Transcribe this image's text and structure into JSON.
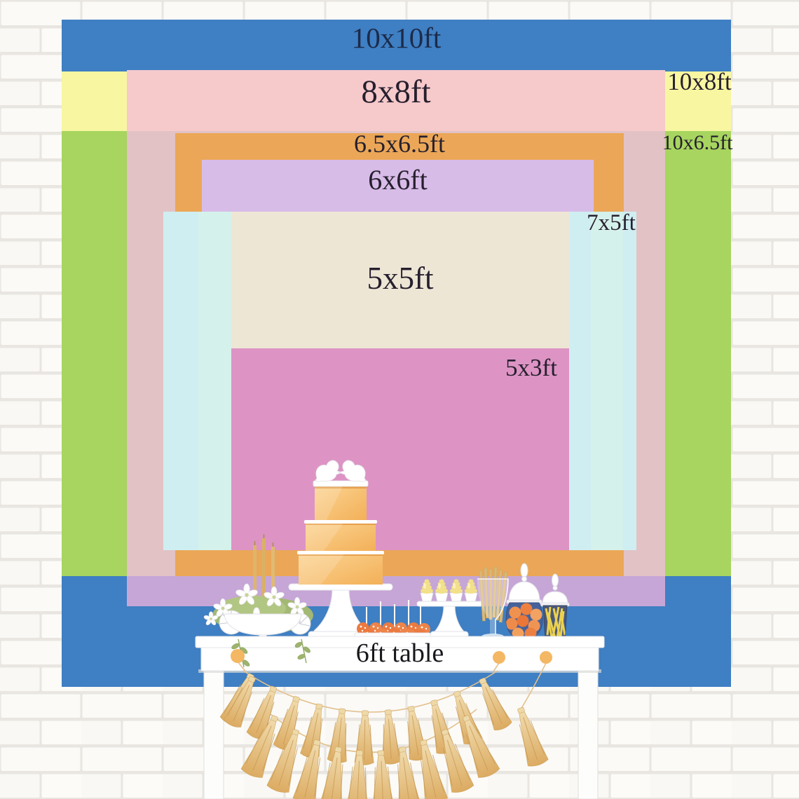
{
  "backdrops": [
    {
      "id": "10x10",
      "label": "10x10ft",
      "color": "#3f7fc3"
    },
    {
      "id": "10x8",
      "label": "10x8ft",
      "color": "#f8f6a1"
    },
    {
      "id": "10x6.5",
      "label": "10x6.5ft",
      "color": "#a7d55f"
    },
    {
      "id": "8x8",
      "label": "8x8ft",
      "color": "#f6c9cb"
    },
    {
      "id": "6.5x6.5",
      "label": "6.5x6.5ft",
      "color": "#eba757"
    },
    {
      "id": "6x6",
      "label": "6x6ft",
      "color": "#d8bce8"
    },
    {
      "id": "7x5",
      "label": "7x5ft",
      "color": "#cfeef2"
    },
    {
      "id": "5x5",
      "label": "5x5ft",
      "color": "#ede6d5"
    },
    {
      "id": "5x3",
      "label": "5x3ft",
      "color": "#dd94c4"
    }
  ],
  "overlay_colors": {
    "pink_over_yellow": "#f6c9cb",
    "pink_over_green": "#e2c2c4",
    "pink_over_blue": "#c6a6d6"
  },
  "table": {
    "label": "6ft table"
  },
  "scene": {
    "wall": "white-brick-wall",
    "decor_items": [
      "love-birds-cake-topper",
      "three-tier-cake",
      "taper-candles",
      "white-flower-centerpiece",
      "cake-pops",
      "cupcakes",
      "breadstick-glass",
      "candy-jar-round",
      "candy-jar-sticks",
      "tassel-garland"
    ]
  }
}
